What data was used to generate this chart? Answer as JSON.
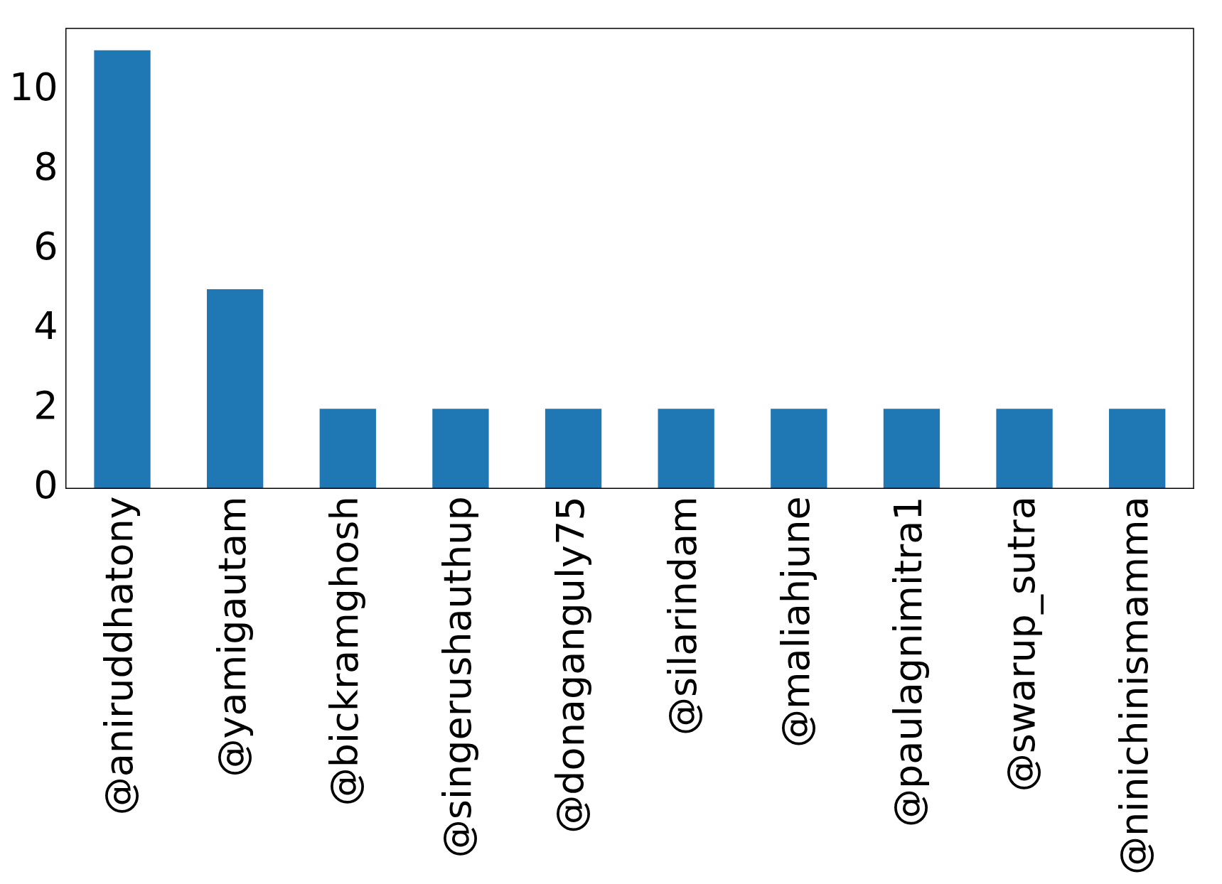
{
  "chart_data": {
    "type": "bar",
    "categories": [
      "@aniruddhatony",
      "@yamigautam",
      "@bickramghosh",
      "@singerushauthup",
      "@donaganguly75",
      "@silarindam",
      "@maliahjune",
      "@paulagnimitra1",
      "@swarup_sutra",
      "@ninichinismamma"
    ],
    "values": [
      11,
      5,
      2,
      2,
      2,
      2,
      2,
      2,
      2,
      2
    ],
    "color": "#1f77b4",
    "ylim": [
      0,
      11.55
    ],
    "yticks": [
      0,
      2,
      4,
      6,
      8,
      10
    ],
    "grid": false,
    "legend": false
  }
}
